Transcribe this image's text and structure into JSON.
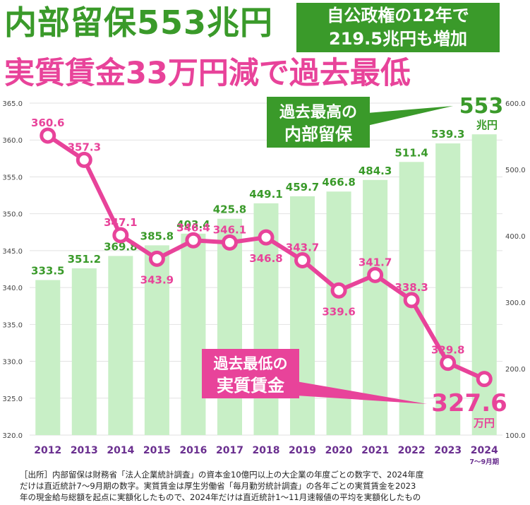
{
  "header": {
    "title": "内部留保553兆円",
    "box_line1": "自公政権の12年で",
    "box_line2": "219.5兆円も増加",
    "subtitle": "実質賃金33万円減で過去最低"
  },
  "callouts": {
    "high_line1": "過去最高の",
    "high_line2": "内部留保",
    "high_value": "553",
    "high_unit": "兆円",
    "low_line1": "過去最低の",
    "low_line2": "実質賃金",
    "low_value": "327.6",
    "low_unit": "万円"
  },
  "footnote": {
    "line1": "［出所］内部留保は財務省「法人企業統計調査」の資本金10億円以上の大企業の年度ごとの数字で、2024年度",
    "line2": "だけは直近統計7～9月期の数字。実質賃金は厚生労働省「毎月勤労統計調査」の各年ごとの実質賃金を2023",
    "line3": "年の現金給与総額を起点に実額化したもので、2024年だけは直近統計1～11月速報値の平均を実額化したもの"
  },
  "colors": {
    "green": "#3a9a2a",
    "bar": "#c8efc6",
    "pink": "#e8439a",
    "axis_label": "#6a2f8f"
  },
  "chart_data": {
    "type": "bar+line",
    "categories": [
      "2012",
      "2013",
      "2014",
      "2015",
      "2016",
      "2017",
      "2018",
      "2019",
      "2020",
      "2021",
      "2022",
      "2023",
      "2024"
    ],
    "category_sublabel": "7～9月期",
    "series": [
      {
        "kind": "bar",
        "axis": "right",
        "values": [
          333.5,
          351.2,
          369.8,
          385.8,
          403.4,
          425.8,
          449.1,
          459.7,
          466.8,
          484.3,
          511.4,
          539.3,
          553
        ],
        "labels": [
          "333.5",
          "351.2",
          "369.8",
          "385.8",
          "403.4",
          "425.8",
          "449.1",
          "459.7",
          "466.8",
          "484.3",
          "511.4",
          "539.3",
          ""
        ]
      },
      {
        "kind": "line",
        "axis": "left",
        "values": [
          360.6,
          357.3,
          347.1,
          343.9,
          346.4,
          346.1,
          346.8,
          343.7,
          339.6,
          341.7,
          338.3,
          329.8,
          327.6
        ],
        "labels": [
          "360.6",
          "357.3",
          "347.1",
          "343.9",
          "346.4",
          "346.1",
          "346.8",
          "343.7",
          "339.6",
          "341.7",
          "338.3",
          "329.8",
          ""
        ]
      }
    ],
    "left_axis": {
      "ylim": [
        320,
        365
      ],
      "ticks": [
        "320.0",
        "325.0",
        "330.0",
        "335.0",
        "340.0",
        "345.0",
        "350.0",
        "355.0",
        "360.0",
        "365.0"
      ]
    },
    "right_axis": {
      "ylim": [
        100,
        600
      ],
      "ticks": [
        "100.0",
        "200.0",
        "300.0",
        "400.0",
        "500.0",
        "600.0"
      ]
    },
    "grid": true
  }
}
